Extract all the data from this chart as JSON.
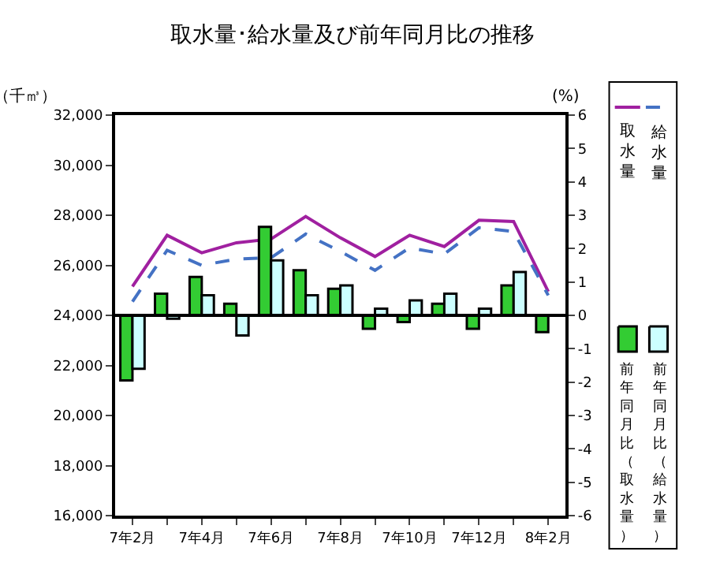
{
  "chart_data": {
    "type": "bar",
    "title": "取水量･給水量及び前年同月比の推移",
    "ylabel": "（千㎥）",
    "y2label": "(%)",
    "categories": [
      "7年2月",
      null,
      "7年4月",
      null,
      "7年6月",
      null,
      "7年8月",
      null,
      "7年10月",
      null,
      "7年12月",
      null,
      "8年2月"
    ],
    "series": [
      {
        "name": "取水量",
        "type": "line",
        "axis": "y",
        "color": "#a020a0",
        "line_style": "solid",
        "values": [
          25150,
          27200,
          26500,
          26900,
          27050,
          27950,
          27100,
          26350,
          27200,
          26750,
          27800,
          27750,
          24950
        ]
      },
      {
        "name": "給水量",
        "type": "line",
        "axis": "y",
        "color": "#4472c4",
        "line_style": "dashed",
        "values": [
          24550,
          26600,
          26000,
          26250,
          26300,
          27250,
          26550,
          25800,
          26700,
          26450,
          27500,
          27350,
          24800
        ]
      },
      {
        "name": "前年同月比（取水量）",
        "axis": "y2",
        "color": "#33cc33",
        "values": [
          -1.95,
          0.65,
          1.15,
          0.35,
          2.65,
          1.35,
          0.8,
          -0.4,
          -0.2,
          0.35,
          -0.4,
          0.9,
          -0.5
        ]
      },
      {
        "name": "前年同月比（給水量）",
        "axis": "y2",
        "color": "#ccffff",
        "values": [
          -1.6,
          -0.1,
          0.6,
          -0.6,
          1.65,
          0.6,
          0.9,
          0.2,
          0.45,
          0.65,
          0.2,
          1.3,
          null
        ]
      }
    ],
    "ylim": [
      16000,
      32000
    ],
    "yticks": [
      {
        "value": 16000,
        "label": "16,000"
      },
      {
        "value": 18000,
        "label": "18,000"
      },
      {
        "value": 20000,
        "label": "20,000"
      },
      {
        "value": 22000,
        "label": "22,000"
      },
      {
        "value": 24000,
        "label": "24,000"
      },
      {
        "value": 26000,
        "label": "26,000"
      },
      {
        "value": 28000,
        "label": "28,000"
      },
      {
        "value": 30000,
        "label": "30,000"
      },
      {
        "value": 32000,
        "label": "32,000"
      }
    ],
    "y2lim": [
      -6,
      6
    ],
    "y2ticks": [
      -6,
      -5,
      -4,
      -3,
      -2,
      -1,
      0,
      1,
      2,
      3,
      4,
      5,
      6
    ],
    "ref_lines": [
      {
        "axis": "y2",
        "value": 0,
        "color": "#000000"
      }
    ],
    "legend": "right"
  }
}
